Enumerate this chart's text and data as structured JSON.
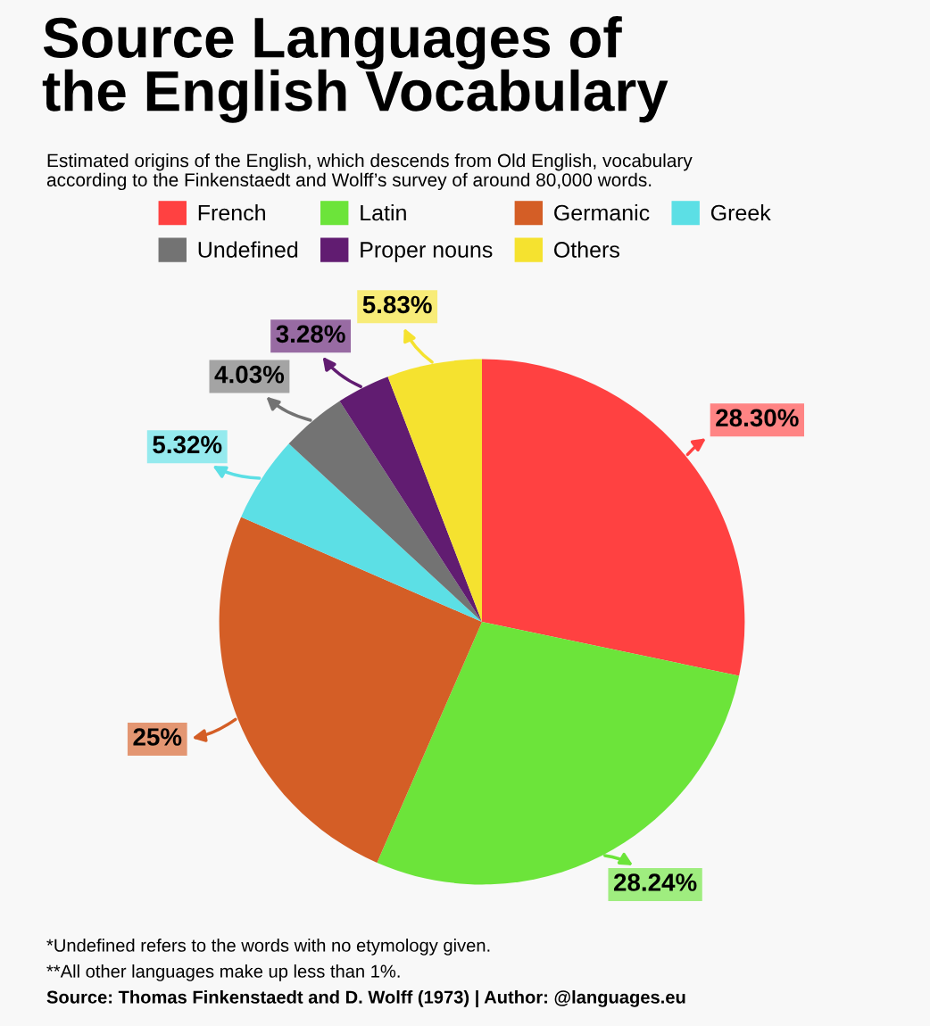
{
  "chart_data": {
    "type": "pie",
    "title": "Source Languages of\nthe English Vocabulary",
    "subtitle": "Estimated origins of the English, which descends from Old English, vocabulary\naccording to the Finkenstaedt and Wolff’s survey of around 80,000 words.",
    "categories": [
      "French",
      "Latin",
      "Germanic",
      "Greek",
      "Undefined",
      "Proper nouns",
      "Others"
    ],
    "values": [
      28.3,
      28.24,
      25,
      5.32,
      4.03,
      3.28,
      5.83
    ],
    "value_labels": [
      "28.30%",
      "28.24%",
      "25%",
      "5.32%",
      "4.03%",
      "3.28%",
      "5.83%"
    ],
    "colors": [
      "#ff4141",
      "#6ce43a",
      "#d45e26",
      "#5cdfe5",
      "#737373",
      "#611c71",
      "#f5e22f"
    ],
    "legend": "top",
    "annotations": [
      "*Undefined refers to the words with no etymology given.",
      "**All other languages make up less than 1%.",
      "Source: Thomas Finkenstaedt and D. Wolff (1973) | Author: @languages.eu"
    ]
  }
}
